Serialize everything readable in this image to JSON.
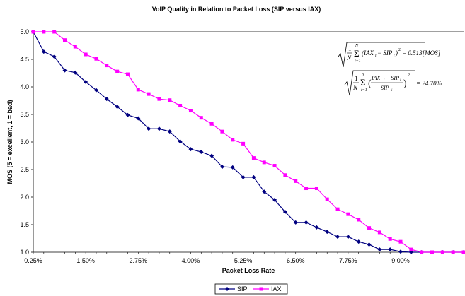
{
  "chart_data": {
    "type": "line",
    "title": "VoIP Quality in Relation to Packet Loss (SIP versus IAX)",
    "xlabel": "Packet Loss Rate",
    "ylabel": "MOS (5 = excellent, 1 = bad)",
    "ylim": [
      1.0,
      5.0
    ],
    "y_ticks": [
      "1.0",
      "1.5",
      "2.0",
      "2.5",
      "3.0",
      "3.5",
      "4.0",
      "4.5",
      "5.0"
    ],
    "x_ticks": [
      "0.25%",
      "1.50%",
      "2.75%",
      "4.00%",
      "5.25%",
      "6.50%",
      "7.75%",
      "9.00%"
    ],
    "x": [
      0.25,
      0.5,
      0.75,
      1.0,
      1.25,
      1.5,
      1.75,
      2.0,
      2.25,
      2.5,
      2.75,
      3.0,
      3.25,
      3.5,
      3.75,
      4.0,
      4.25,
      4.5,
      4.75,
      5.0,
      5.25,
      5.5,
      5.75,
      6.0,
      6.25,
      6.5,
      6.75,
      7.0,
      7.25,
      7.5,
      7.75,
      8.0,
      8.25,
      8.5,
      8.75,
      9.0,
      9.25,
      9.5,
      9.75,
      10.0,
      10.25,
      10.5
    ],
    "series": [
      {
        "name": "SIP",
        "color": "#000080",
        "marker": "diamond",
        "values": [
          5.0,
          4.64,
          4.55,
          4.3,
          4.26,
          4.09,
          3.94,
          3.78,
          3.64,
          3.49,
          3.43,
          3.24,
          3.24,
          3.19,
          3.01,
          2.87,
          2.82,
          2.75,
          2.55,
          2.54,
          2.36,
          2.36,
          2.1,
          1.95,
          1.73,
          1.54,
          1.54,
          1.45,
          1.37,
          1.28,
          1.28,
          1.19,
          1.14,
          1.05,
          1.05,
          1.01,
          1.0,
          1.0,
          1.0,
          1.0,
          1.0,
          1.0
        ]
      },
      {
        "name": "IAX",
        "color": "#FF00FF",
        "marker": "square",
        "values": [
          5.0,
          5.0,
          5.0,
          4.85,
          4.73,
          4.59,
          4.51,
          4.39,
          4.28,
          4.23,
          3.95,
          3.87,
          3.78,
          3.76,
          3.66,
          3.57,
          3.44,
          3.33,
          3.19,
          3.04,
          2.97,
          2.71,
          2.63,
          2.57,
          2.4,
          2.29,
          2.16,
          2.16,
          1.96,
          1.78,
          1.69,
          1.59,
          1.44,
          1.36,
          1.24,
          1.19,
          1.05,
          1.0,
          1.0,
          1.0,
          1.0,
          1.0
        ]
      }
    ],
    "grid": "horizontal-top-line-only",
    "legend_position": "bottom",
    "annotations": {
      "formula1": {
        "lhs_frac_num": "1",
        "lhs_frac_den": "N",
        "sum_top": "N",
        "sum_bottom": "i=1",
        "body": "(IAX",
        "sub_i": "i",
        "mid": " − SIP",
        "close": ")",
        "sup": "2",
        "result": "= 0.513[MOS]"
      },
      "formula2": {
        "lhs_frac_num": "1",
        "lhs_frac_den": "N",
        "sum_top": "N",
        "sum_bottom": "i=1",
        "inner_num": "IAX",
        "inner_num_mid": " − SIP",
        "inner_den": "SIP",
        "sub_i": "i",
        "sup": "2",
        "result": "= 24.70%"
      }
    }
  }
}
